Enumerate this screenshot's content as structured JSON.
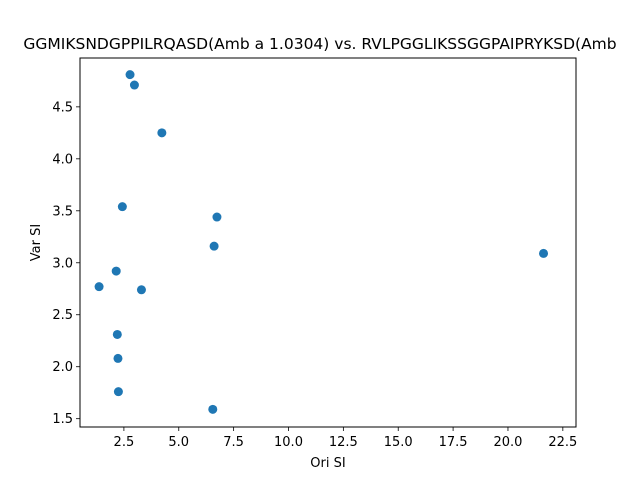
{
  "chart_data": {
    "type": "scatter",
    "title": "GGMIKSNDGPPILRQASD(Amb a 1.0304) vs. RVLPGGLIKSSGGPAIPRYKSD(Amb",
    "xlabel": "Ori SI",
    "ylabel": "Var SI",
    "xlim": [
      0.5,
      23.1
    ],
    "ylim": [
      1.42,
      4.97
    ],
    "x_ticks": [
      "2.5",
      "5.0",
      "7.5",
      "10.0",
      "12.5",
      "15.0",
      "17.5",
      "20.0",
      "22.5"
    ],
    "x_tick_values": [
      2.5,
      5.0,
      7.5,
      10.0,
      12.5,
      15.0,
      17.5,
      20.0,
      22.5
    ],
    "y_ticks": [
      "1.5",
      "2.0",
      "2.5",
      "3.0",
      "3.5",
      "4.0",
      "4.5"
    ],
    "y_tick_values": [
      1.5,
      2.0,
      2.5,
      3.0,
      3.5,
      4.0,
      4.5
    ],
    "grid": false,
    "marker_color": "#1f77b4",
    "points": [
      {
        "x": 2.78,
        "y": 4.81
      },
      {
        "x": 2.98,
        "y": 4.71
      },
      {
        "x": 4.23,
        "y": 4.25
      },
      {
        "x": 2.43,
        "y": 3.54
      },
      {
        "x": 6.74,
        "y": 3.44
      },
      {
        "x": 6.61,
        "y": 3.16
      },
      {
        "x": 21.62,
        "y": 3.09
      },
      {
        "x": 2.15,
        "y": 2.92
      },
      {
        "x": 1.37,
        "y": 2.77
      },
      {
        "x": 3.3,
        "y": 2.74
      },
      {
        "x": 2.2,
        "y": 2.31
      },
      {
        "x": 2.23,
        "y": 2.08
      },
      {
        "x": 2.25,
        "y": 1.76
      },
      {
        "x": 6.55,
        "y": 1.59
      }
    ]
  }
}
